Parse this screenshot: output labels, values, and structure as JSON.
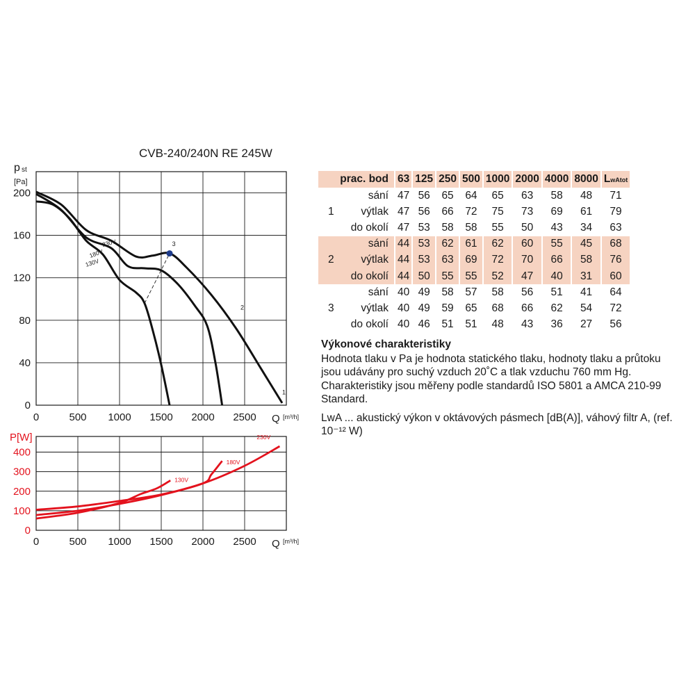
{
  "chart_data": [
    {
      "type": "line",
      "title": "CVB-240/240N RE 245W",
      "ylabel_main": "p",
      "ylabel_sub": "st",
      "yunit": "[Pa]",
      "xlabel": "Q",
      "xunit": "[m³/h]",
      "xlim": [
        0,
        3000
      ],
      "ylim": [
        0,
        220
      ],
      "xticks": [
        0,
        500,
        1000,
        1500,
        2000,
        2500
      ],
      "yticks": [
        0,
        40,
        80,
        120,
        160,
        200
      ],
      "grid": true,
      "series": [
        {
          "name": "230V",
          "x": [
            0,
            300,
            600,
            900,
            1200,
            1400,
            1600,
            1800,
            2100,
            2400,
            2700,
            2950
          ],
          "y": [
            201,
            189,
            165,
            155,
            140,
            141,
            143,
            130,
            104,
            72,
            34,
            2
          ]
        },
        {
          "name": "180V",
          "x": [
            0,
            300,
            600,
            900,
            1100,
            1300,
            1500,
            1700,
            1900,
            2050,
            2150,
            2230
          ],
          "y": [
            199,
            184,
            158,
            148,
            131,
            129,
            127,
            114,
            94,
            75,
            40,
            0
          ]
        },
        {
          "name": "130V",
          "x": [
            0,
            200,
            400,
            600,
            800,
            1000,
            1200,
            1300,
            1400,
            1500,
            1600
          ],
          "y": [
            192,
            189,
            176,
            155,
            142,
            118,
            106,
            96,
            70,
            38,
            0
          ]
        }
      ],
      "operating_point": {
        "label": "3",
        "x": 1600,
        "y": 143
      },
      "curve_labels": [
        {
          "text": "1",
          "x": 2950,
          "y": 10
        },
        {
          "text": "2",
          "x": 2450,
          "y": 90
        },
        {
          "text": "3",
          "x": 1630,
          "y": 150
        }
      ],
      "dashed_line": {
        "x": [
          1300,
          1600
        ],
        "y": [
          96,
          143
        ]
      },
      "point_color": "#1e3c8c"
    },
    {
      "type": "line",
      "ylabel": "P[W]",
      "xlabel": "Q",
      "xunit": "[m³/h]",
      "xlim": [
        0,
        3000
      ],
      "ylim": [
        0,
        480
      ],
      "xticks": [
        0,
        500,
        1000,
        1500,
        2000,
        2500
      ],
      "yticks": [
        0,
        100,
        200,
        300,
        400
      ],
      "grid": true,
      "color": "#e3121d",
      "series": [
        {
          "name": "230V",
          "x": [
            0,
            500,
            1000,
            1500,
            2000,
            2500,
            2920
          ],
          "y": [
            105,
            122,
            150,
            183,
            240,
            330,
            430
          ]
        },
        {
          "name": "180V",
          "x": [
            0,
            500,
            1000,
            1500,
            2000,
            2100,
            2230
          ],
          "y": [
            78,
            100,
            135,
            180,
            240,
            285,
            355
          ]
        },
        {
          "name": "130V",
          "x": [
            0,
            500,
            1000,
            1250,
            1450,
            1610
          ],
          "y": [
            60,
            90,
            140,
            185,
            215,
            255
          ]
        }
      ]
    }
  ],
  "table": {
    "header": [
      "prac. bod",
      "63",
      "125",
      "250",
      "500",
      "1000",
      "2000",
      "4000",
      "8000"
    ],
    "header_last_main": "L",
    "header_last_sub": "wAtot",
    "groups": [
      {
        "point": "1",
        "rows": [
          {
            "label": "sání",
            "values": [
              "47",
              "56",
              "65",
              "64",
              "65",
              "63",
              "58",
              "48",
              "71"
            ]
          },
          {
            "label": "výtlak",
            "values": [
              "47",
              "56",
              "66",
              "72",
              "75",
              "73",
              "69",
              "61",
              "79"
            ]
          },
          {
            "label": "do okolí",
            "values": [
              "47",
              "53",
              "58",
              "58",
              "55",
              "50",
              "43",
              "34",
              "63"
            ]
          }
        ]
      },
      {
        "point": "2",
        "rows": [
          {
            "label": "sání",
            "values": [
              "44",
              "53",
              "62",
              "61",
              "62",
              "60",
              "55",
              "45",
              "68"
            ]
          },
          {
            "label": "výtlak",
            "values": [
              "44",
              "53",
              "63",
              "69",
              "72",
              "70",
              "66",
              "58",
              "76"
            ]
          },
          {
            "label": "do okolí",
            "values": [
              "44",
              "50",
              "55",
              "55",
              "52",
              "47",
              "40",
              "31",
              "60"
            ]
          }
        ]
      },
      {
        "point": "3",
        "rows": [
          {
            "label": "sání",
            "values": [
              "40",
              "49",
              "58",
              "57",
              "58",
              "56",
              "51",
              "41",
              "64"
            ]
          },
          {
            "label": "výtlak",
            "values": [
              "40",
              "49",
              "59",
              "65",
              "68",
              "66",
              "62",
              "54",
              "72"
            ]
          },
          {
            "label": "do okolí",
            "values": [
              "40",
              "46",
              "51",
              "51",
              "48",
              "43",
              "36",
              "27",
              "56"
            ]
          }
        ]
      }
    ]
  },
  "description": {
    "title": "Výkonové charakteristiky",
    "text1": "Hodnota tlaku v Pa je hodnota statického tlaku, hodnoty tlaku a průtoku jsou udávány pro suchý vzduch 20˚C a tlak vzduchu 760 mm Hg. Charakteristiky jsou měřeny podle standardů ISO 5801 a AMCA 210-99 Standard.",
    "text2": "LwA ... akustický výkon v oktávových pásmech [dB(A)], váhový filtr A, (ref. 10⁻¹² W)"
  },
  "colors": {
    "table_shade": "#f6d3c1",
    "power_curve": "#e3121d"
  }
}
